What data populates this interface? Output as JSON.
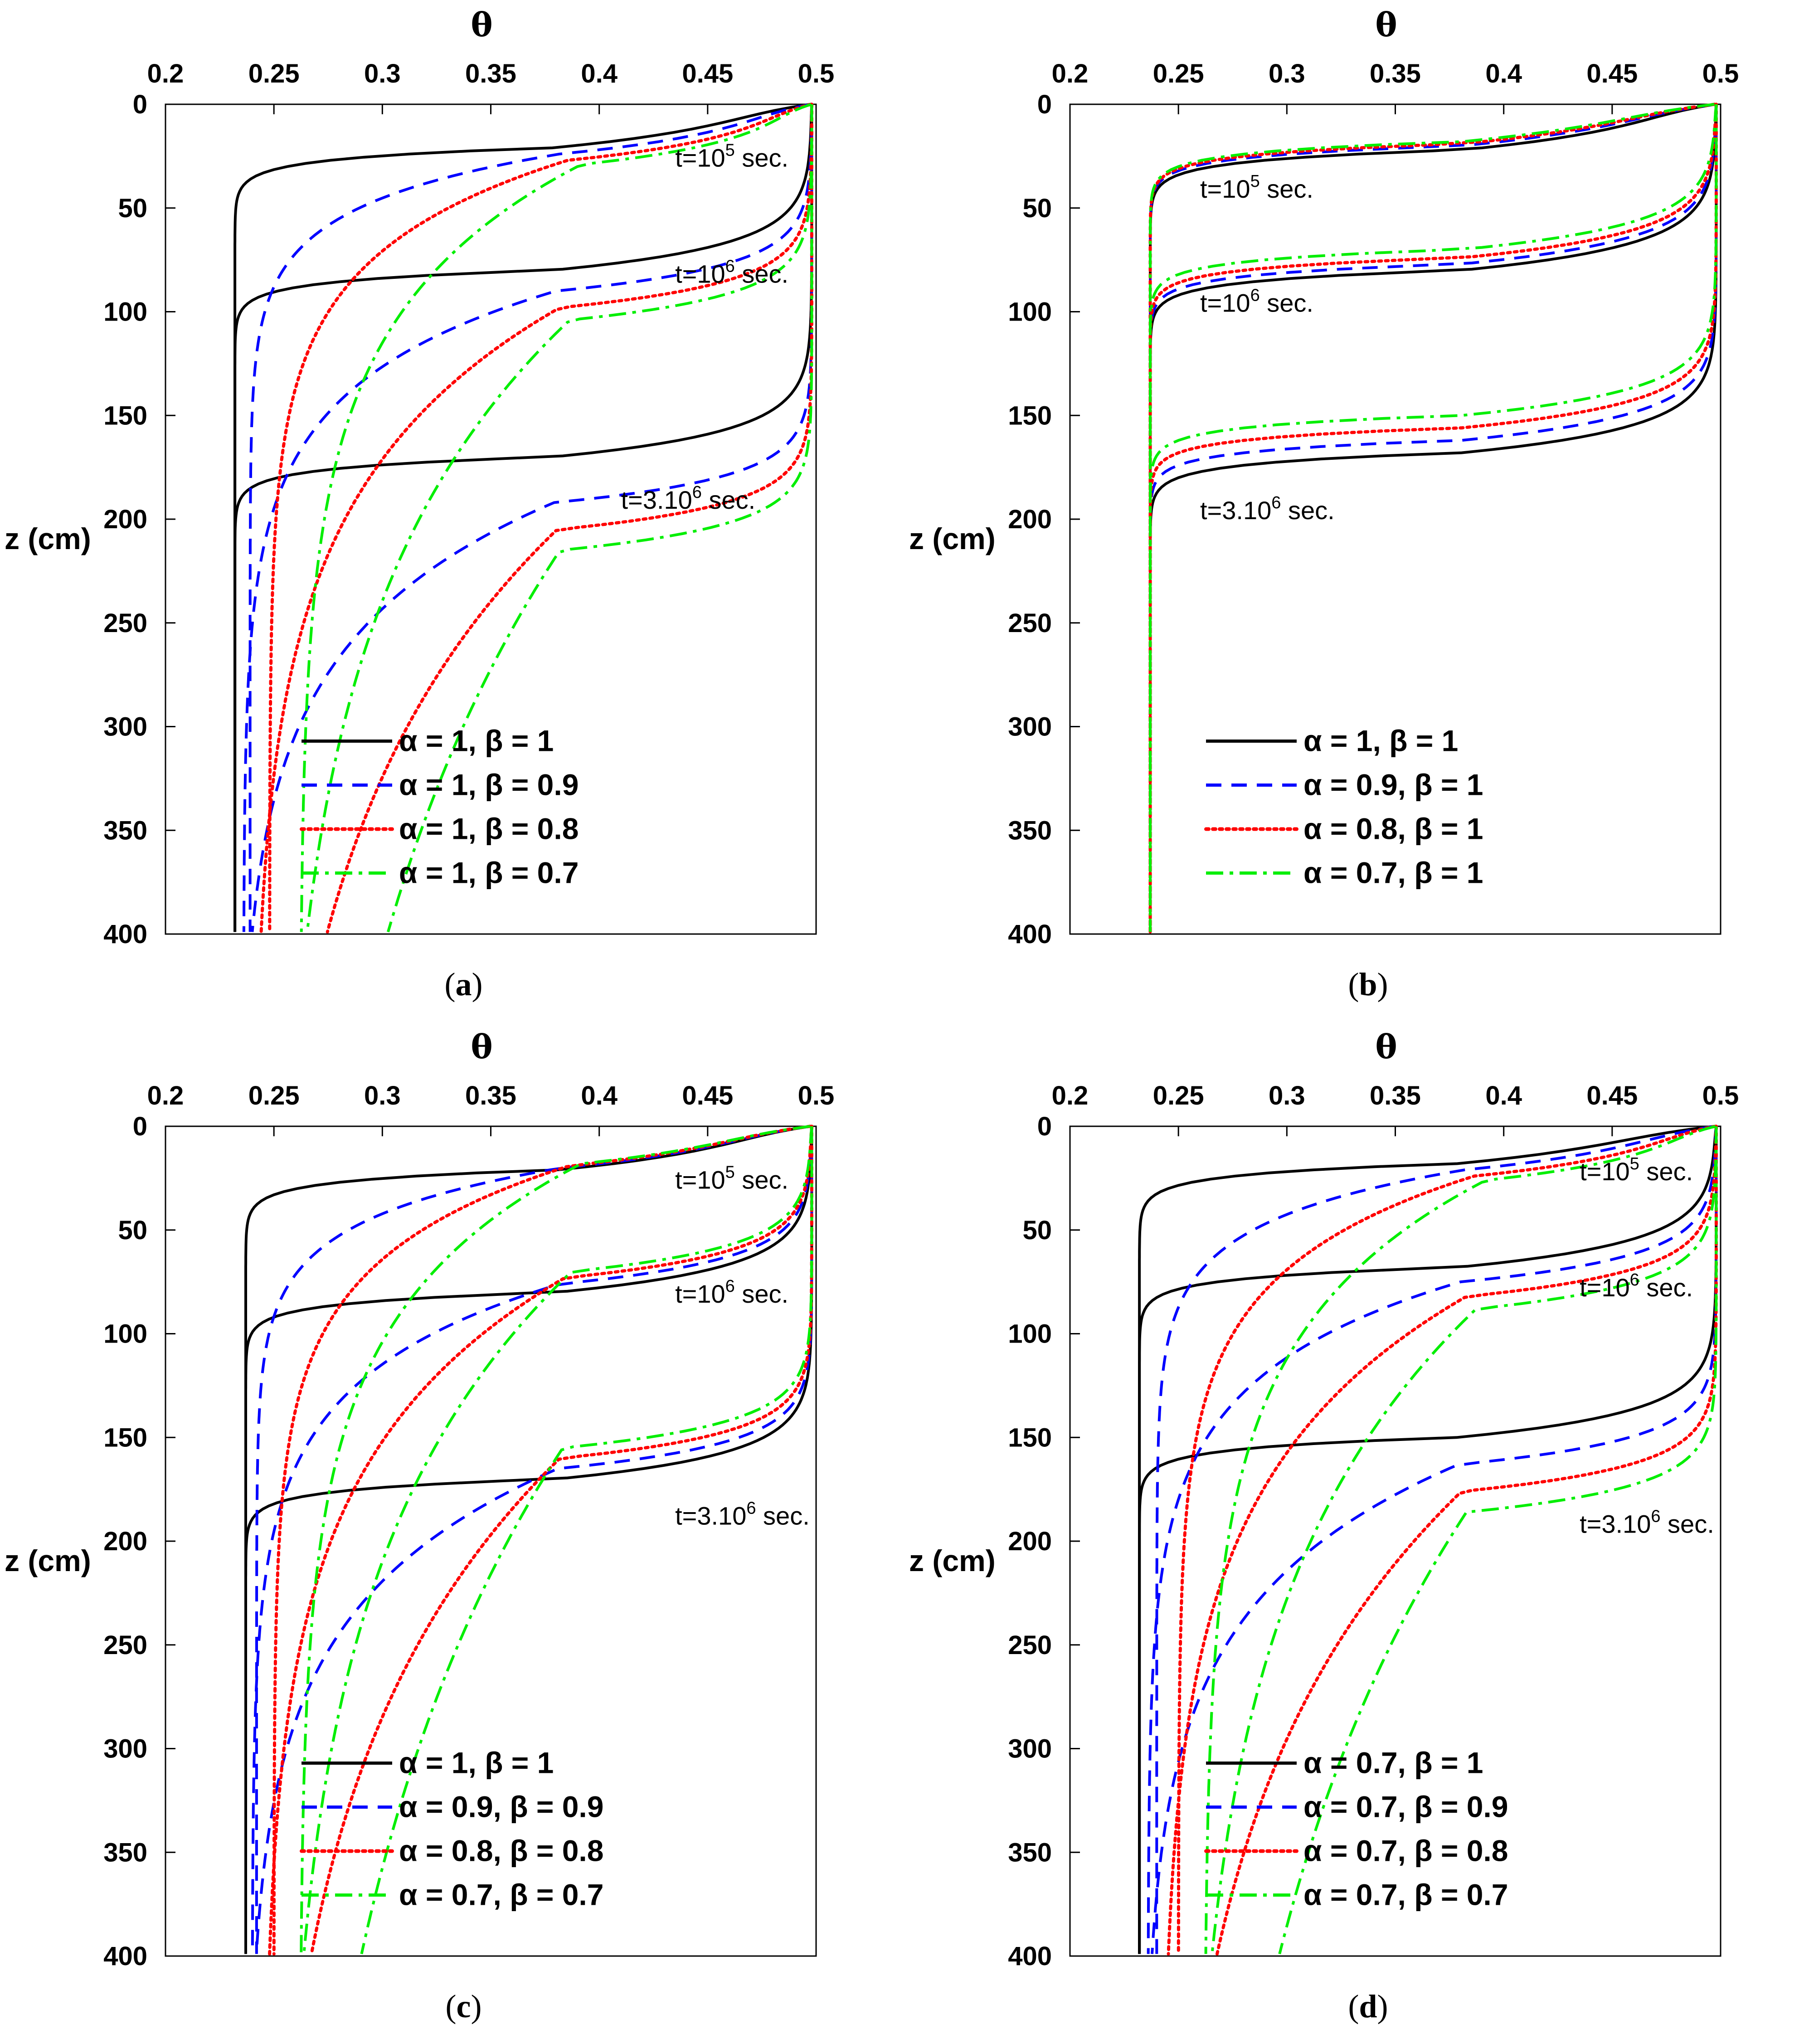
{
  "chart_data": [
    {
      "type": "line",
      "panel_label": "a",
      "x_title": "θ",
      "y_title": "z (cm)",
      "x_ticks": [
        "0.2",
        "0.25",
        "0.3",
        "0.35",
        "0.4",
        "0.45",
        "0.5"
      ],
      "y_ticks": [
        "0",
        "50",
        "100",
        "150",
        "200",
        "250",
        "300",
        "350",
        "400"
      ],
      "xlim": [
        0.2,
        0.5
      ],
      "ylim": [
        0,
        400
      ],
      "annotations": [
        {
          "base": "t=10",
          "sup": "5",
          "rest": " sec.",
          "theta": 0.435,
          "z": 30
        },
        {
          "base": "t=10",
          "sup": "6",
          "rest": " sec.",
          "theta": 0.435,
          "z": 86
        },
        {
          "base": "t=3.10",
          "sup": "6",
          "rest": " sec.",
          "theta": 0.41,
          "z": 195
        }
      ],
      "series": [
        {
          "name": "α = 1, β = 1",
          "color": "#000000",
          "style": "solid",
          "front": [
            21,
            80,
            170
          ],
          "theta_r": [
            0.232,
            0.232,
            0.232
          ],
          "spread": [
            0,
            0,
            0
          ]
        },
        {
          "name": "α = 1, β = 0.9",
          "color": "#0000ff",
          "style": "dashed",
          "front": [
            24,
            90,
            192
          ],
          "theta_r": [
            0.239,
            0.236,
            0.234
          ],
          "spread": [
            20,
            40,
            60
          ]
        },
        {
          "name": "α = 1, β = 0.8",
          "color": "#ff0000",
          "style": "dotted",
          "front": [
            27,
            98,
            205
          ],
          "theta_r": [
            0.248,
            0.24,
            0.237
          ],
          "spread": [
            40,
            80,
            140
          ]
        },
        {
          "name": "α = 1, β = 0.7",
          "color": "#00ee00",
          "style": "dashdot",
          "front": [
            29,
            104,
            215
          ],
          "theta_r": [
            0.262,
            0.25,
            0.24
          ],
          "spread": [
            65,
            130,
            220
          ]
        }
      ]
    },
    {
      "type": "line",
      "panel_label": "b",
      "x_title": "θ",
      "y_title": "z (cm)",
      "x_ticks": [
        "0.2",
        "0.25",
        "0.3",
        "0.35",
        "0.4",
        "0.45",
        "0.5"
      ],
      "y_ticks": [
        "0",
        "50",
        "100",
        "150",
        "200",
        "250",
        "300",
        "350",
        "400"
      ],
      "xlim": [
        0.2,
        0.5
      ],
      "ylim": [
        0,
        400
      ],
      "annotations": [
        {
          "base": "t=10",
          "sup": "5",
          "rest": " sec.",
          "theta": 0.26,
          "z": 45
        },
        {
          "base": "t=10",
          "sup": "6",
          "rest": " sec.",
          "theta": 0.26,
          "z": 100
        },
        {
          "base": "t=3.10",
          "sup": "6",
          "rest": " sec.",
          "theta": 0.26,
          "z": 200
        }
      ],
      "series": [
        {
          "name": "α = 1, β = 1",
          "color": "#000000",
          "style": "solid",
          "front": [
            22,
            80,
            168
          ],
          "theta_r": [
            0.237,
            0.237,
            0.237
          ],
          "spread": [
            0,
            0,
            0
          ]
        },
        {
          "name": "α = 0.9, β = 1",
          "color": "#0000ff",
          "style": "dashed",
          "front": [
            20,
            77,
            162
          ],
          "theta_r": [
            0.237,
            0.237,
            0.237
          ],
          "spread": [
            0,
            0,
            0
          ]
        },
        {
          "name": "α = 0.8, β = 1",
          "color": "#ff0000",
          "style": "dotted",
          "front": [
            19,
            74,
            156
          ],
          "theta_r": [
            0.237,
            0.237,
            0.237
          ],
          "spread": [
            0,
            0,
            0
          ]
        },
        {
          "name": "α = 0.7, β = 1",
          "color": "#00ee00",
          "style": "dashdot",
          "front": [
            18,
            70,
            150
          ],
          "theta_r": [
            0.237,
            0.237,
            0.237
          ],
          "spread": [
            0,
            0,
            0
          ]
        }
      ]
    },
    {
      "type": "line",
      "panel_label": "c",
      "x_title": "θ",
      "y_title": "z (cm)",
      "x_ticks": [
        "0.2",
        "0.25",
        "0.3",
        "0.35",
        "0.4",
        "0.45",
        "0.5"
      ],
      "y_ticks": [
        "0",
        "50",
        "100",
        "150",
        "200",
        "250",
        "300",
        "350",
        "400"
      ],
      "xlim": [
        0.2,
        0.5
      ],
      "ylim": [
        0,
        400
      ],
      "annotations": [
        {
          "base": "t=10",
          "sup": "5",
          "rest": " sec.",
          "theta": 0.435,
          "z": 30
        },
        {
          "base": "t=10",
          "sup": "6",
          "rest": " sec.",
          "theta": 0.435,
          "z": 85
        },
        {
          "base": "t=3.10",
          "sup": "6",
          "rest": " sec.",
          "theta": 0.435,
          "z": 192
        }
      ],
      "series": [
        {
          "name": "α = 1, β = 1",
          "color": "#000000",
          "style": "solid",
          "front": [
            21,
            80,
            170
          ],
          "theta_r": [
            0.237,
            0.237,
            0.237
          ],
          "spread": [
            0,
            0,
            0
          ]
        },
        {
          "name": "α = 0.9, β = 0.9",
          "color": "#0000ff",
          "style": "dashed",
          "front": [
            20,
            76,
            165
          ],
          "theta_r": [
            0.242,
            0.24,
            0.238
          ],
          "spread": [
            20,
            40,
            60
          ]
        },
        {
          "name": "α = 0.8, β = 0.8",
          "color": "#ff0000",
          "style": "dotted",
          "front": [
            19,
            73,
            160
          ],
          "theta_r": [
            0.25,
            0.245,
            0.24
          ],
          "spread": [
            40,
            80,
            140
          ]
        },
        {
          "name": "α = 0.7, β = 0.7",
          "color": "#00ee00",
          "style": "dashdot",
          "front": [
            18,
            70,
            155
          ],
          "theta_r": [
            0.262,
            0.252,
            0.243
          ],
          "spread": [
            65,
            130,
            220
          ]
        }
      ]
    },
    {
      "type": "line",
      "panel_label": "d",
      "x_title": "θ",
      "y_title": "z (cm)",
      "x_ticks": [
        "0.2",
        "0.25",
        "0.3",
        "0.35",
        "0.4",
        "0.45",
        "0.5"
      ],
      "y_ticks": [
        "0",
        "50",
        "100",
        "150",
        "200",
        "250",
        "300",
        "350",
        "400"
      ],
      "xlim": [
        0.2,
        0.5
      ],
      "ylim": [
        0,
        400
      ],
      "annotations": [
        {
          "base": "t=10",
          "sup": "5",
          "rest": " sec.",
          "theta": 0.435,
          "z": 26
        },
        {
          "base": "t=10",
          "sup": "6",
          "rest": " sec.",
          "theta": 0.435,
          "z": 82
        },
        {
          "base": "t=3.10",
          "sup": "6",
          "rest": " sec.",
          "theta": 0.435,
          "z": 196
        }
      ],
      "series": [
        {
          "name": "α = 0.7, β = 1",
          "color": "#000000",
          "style": "solid",
          "front": [
            18,
            68,
            150
          ],
          "theta_r": [
            0.232,
            0.232,
            0.232
          ],
          "spread": [
            0,
            0,
            0
          ]
        },
        {
          "name": "α = 0.7, β = 0.9",
          "color": "#0000ff",
          "style": "dashed",
          "front": [
            21,
            75,
            163
          ],
          "theta_r": [
            0.24,
            0.236,
            0.234
          ],
          "spread": [
            20,
            40,
            60
          ]
        },
        {
          "name": "α = 0.7, β = 0.8",
          "color": "#ff0000",
          "style": "dotted",
          "front": [
            24,
            82,
            176
          ],
          "theta_r": [
            0.25,
            0.242,
            0.237
          ],
          "spread": [
            40,
            80,
            140
          ]
        },
        {
          "name": "α = 0.7, β = 0.7",
          "color": "#00ee00",
          "style": "dashdot",
          "front": [
            26,
            88,
            186
          ],
          "theta_r": [
            0.262,
            0.252,
            0.242
          ],
          "spread": [
            65,
            130,
            220
          ]
        }
      ]
    }
  ]
}
